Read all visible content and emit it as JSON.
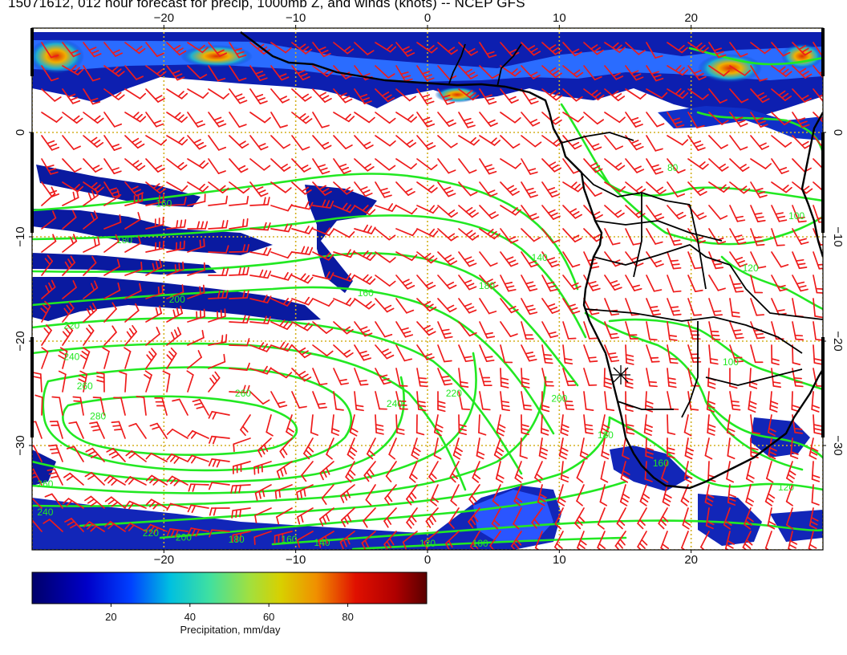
{
  "title": "15071612, 012 hour forecast for precip, 1000mb Z, and winds (knots) -- NCEP GFS",
  "lon_ticks": [
    {
      "value": -20,
      "label": "−20"
    },
    {
      "value": -10,
      "label": "−10"
    },
    {
      "value": 0,
      "label": "0"
    },
    {
      "value": 10,
      "label": "10"
    },
    {
      "value": 20,
      "label": "20"
    }
  ],
  "lat_ticks": [
    {
      "value": 0,
      "label": "0"
    },
    {
      "value": -10,
      "label": "−10"
    },
    {
      "value": -20,
      "label": "−20"
    },
    {
      "value": -30,
      "label": "−30"
    }
  ],
  "map_extent": {
    "lon": [
      -30,
      30
    ],
    "lat": [
      -40,
      10
    ]
  },
  "contour_labels": [
    {
      "text": "160",
      "lon": -20,
      "lat": -6.8
    },
    {
      "text": "180",
      "lon": -23,
      "lat": -10.3
    },
    {
      "text": "200",
      "lon": -19,
      "lat": -16
    },
    {
      "text": "220",
      "lon": -27,
      "lat": -18.5
    },
    {
      "text": "240",
      "lon": -27,
      "lat": -21.5
    },
    {
      "text": "260",
      "lon": -26,
      "lat": -24.3
    },
    {
      "text": "280",
      "lon": -25,
      "lat": -27.2
    },
    {
      "text": "260",
      "lon": -14,
      "lat": -25
    },
    {
      "text": "240",
      "lon": -2.5,
      "lat": -26
    },
    {
      "text": "220",
      "lon": 2,
      "lat": -25
    },
    {
      "text": "200",
      "lon": 10,
      "lat": -25.5
    },
    {
      "text": "180",
      "lon": 13.5,
      "lat": -29
    },
    {
      "text": "160",
      "lon": 17.7,
      "lat": -31.7
    },
    {
      "text": "180",
      "lon": 4.5,
      "lat": -14.7
    },
    {
      "text": "160",
      "lon": -4.7,
      "lat": -15.4
    },
    {
      "text": "140",
      "lon": 8.5,
      "lat": -12
    },
    {
      "text": "100",
      "lon": 23,
      "lat": -22
    },
    {
      "text": "120",
      "lon": 24.5,
      "lat": -13
    },
    {
      "text": "100",
      "lon": 28,
      "lat": -8
    },
    {
      "text": "80",
      "lon": 18.6,
      "lat": -3.4
    },
    {
      "text": "260",
      "lon": -29,
      "lat": -33.7
    },
    {
      "text": "240",
      "lon": -29,
      "lat": -36.4
    },
    {
      "text": "220",
      "lon": -21,
      "lat": -38.4
    },
    {
      "text": "200",
      "lon": -18.5,
      "lat": -38.8
    },
    {
      "text": "180",
      "lon": -14.5,
      "lat": -39
    },
    {
      "text": "160",
      "lon": -10.5,
      "lat": -39
    },
    {
      "text": "140",
      "lon": -8,
      "lat": -39.3
    },
    {
      "text": "120",
      "lon": 0,
      "lat": -39.4
    },
    {
      "text": "100",
      "lon": 4,
      "lat": -39.4
    },
    {
      "text": "120",
      "lon": 27.2,
      "lat": -34
    }
  ],
  "colorbar": {
    "ticks": [
      {
        "value": 20,
        "label": "20"
      },
      {
        "value": 40,
        "label": "40"
      },
      {
        "value": 60,
        "label": "60"
      },
      {
        "value": 80,
        "label": "80"
      }
    ],
    "min": 0,
    "max": 100,
    "label": "Precipitation, mm/day",
    "stops": [
      "#000080",
      "#0000ff",
      "#00bfff",
      "#7fff7f",
      "#bfbf00",
      "#ff7f00",
      "#ff0000",
      "#800000"
    ]
  },
  "colors": {
    "contour": "#22e822",
    "barb": "#ee1c1c",
    "coast": "#000000",
    "grid": "#d4b020",
    "frame_bg": "#ffffff"
  }
}
